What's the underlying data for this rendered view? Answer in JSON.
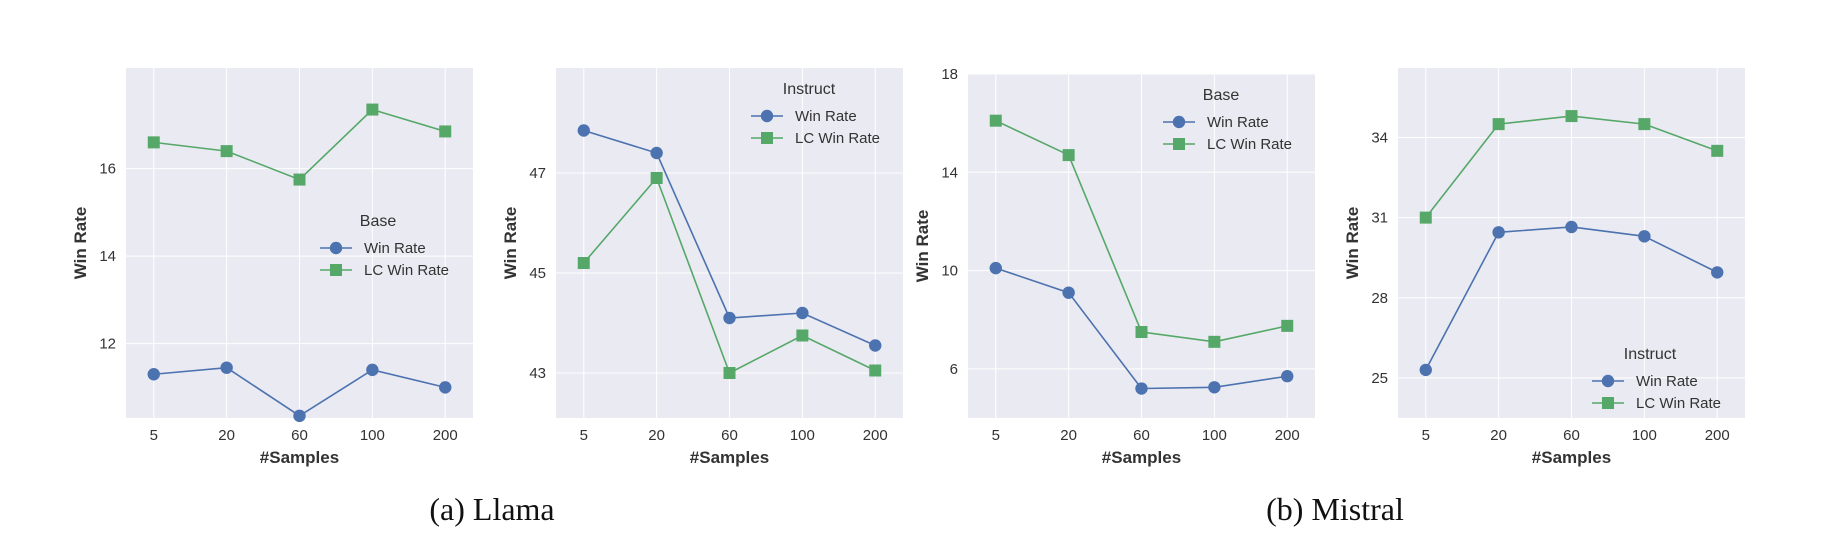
{
  "colors": {
    "plot_bg": "#eaeaf2",
    "grid": "#ffffff",
    "win_rate": "#4c72b0",
    "lc_win_rate": "#55a868",
    "text": "#333333"
  },
  "captions": {
    "llama": "(a) Llama",
    "mistral": "(b) Mistral"
  },
  "chart_data": [
    {
      "type": "line",
      "model": "Llama",
      "categories": [
        "5",
        "20",
        "60",
        "100",
        "200"
      ],
      "xlabel": "#Samples",
      "ylabel": "Win Rate",
      "yticks": [
        "12",
        "14",
        "16"
      ],
      "ylim": [
        10.3,
        18.3
      ],
      "legend": {
        "title": "Base",
        "position": "center-right"
      },
      "series": [
        {
          "name": "Win Rate",
          "marker": "circle",
          "values": [
            11.3,
            11.45,
            10.35,
            11.4,
            11.0
          ]
        },
        {
          "name": "LC Win Rate",
          "marker": "square",
          "values": [
            16.6,
            16.4,
            15.75,
            17.35,
            16.85
          ]
        }
      ]
    },
    {
      "type": "line",
      "model": "Llama",
      "categories": [
        "5",
        "20",
        "60",
        "100",
        "200"
      ],
      "xlabel": "#Samples",
      "ylabel": "Win Rate",
      "yticks": [
        "43",
        "45",
        "47"
      ],
      "ylim": [
        42.1,
        49.1
      ],
      "legend": {
        "title": "Instruct",
        "position": "top-right"
      },
      "series": [
        {
          "name": "Win Rate",
          "marker": "circle",
          "values": [
            47.85,
            47.4,
            44.1,
            44.2,
            43.55
          ]
        },
        {
          "name": "LC Win Rate",
          "marker": "square",
          "values": [
            45.2,
            46.9,
            43.0,
            43.75,
            43.05
          ]
        }
      ]
    },
    {
      "type": "line",
      "model": "Mistral",
      "categories": [
        "5",
        "20",
        "60",
        "100",
        "200"
      ],
      "xlabel": "#Samples",
      "ylabel": "Win Rate",
      "yticks": [
        "6",
        "10",
        "14",
        "18"
      ],
      "ylim": [
        4.0,
        18.0
      ],
      "legend": {
        "title": "Base",
        "position": "top-right"
      },
      "series": [
        {
          "name": "Win Rate",
          "marker": "circle",
          "values": [
            10.1,
            9.1,
            5.2,
            5.25,
            5.7
          ]
        },
        {
          "name": "LC Win Rate",
          "marker": "square",
          "values": [
            16.1,
            14.7,
            7.5,
            7.1,
            7.75
          ]
        }
      ]
    },
    {
      "type": "line",
      "model": "Mistral",
      "categories": [
        "5",
        "20",
        "60",
        "100",
        "200"
      ],
      "xlabel": "#Samples",
      "ylabel": "Win Rate",
      "yticks": [
        "25",
        "28",
        "31",
        "34"
      ],
      "ylim": [
        23.5,
        36.6
      ],
      "legend": {
        "title": "Instruct",
        "position": "bottom-right"
      },
      "series": [
        {
          "name": "Win Rate",
          "marker": "circle",
          "values": [
            25.3,
            30.45,
            30.65,
            30.3,
            28.95
          ]
        },
        {
          "name": "LC Win Rate",
          "marker": "square",
          "values": [
            31.0,
            34.5,
            34.8,
            34.5,
            33.5
          ]
        }
      ]
    }
  ]
}
